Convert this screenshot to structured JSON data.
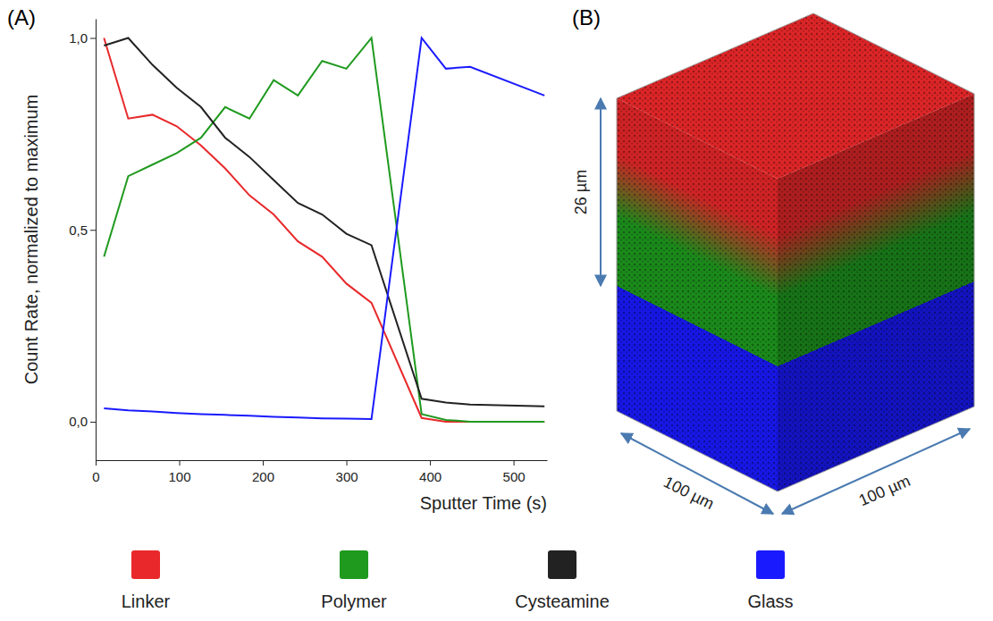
{
  "chart_data": [
    {
      "type": "line",
      "label": "(A)",
      "x_label": "Sputter Time (s)",
      "y_label": "Count Rate, normalized to maximum",
      "x": [
        10,
        39,
        68,
        97,
        126,
        155,
        184,
        213,
        242,
        271,
        300,
        330,
        390,
        419,
        448,
        537
      ],
      "xlim": [
        0,
        540
      ],
      "xticks": [
        0,
        100,
        200,
        300,
        400,
        500
      ],
      "ylim": [
        -0.1,
        1.05
      ],
      "yticks": [
        {
          "value": 0,
          "label": "0,0"
        },
        {
          "value": 0.5,
          "label": "0,5"
        },
        {
          "value": 1,
          "label": "1,0"
        }
      ],
      "grid": false,
      "legend": "bottom",
      "series": [
        {
          "name": "Linker",
          "color": "#e8282a",
          "values": [
            1.0,
            0.79,
            0.8,
            0.77,
            0.72,
            0.66,
            0.59,
            0.54,
            0.47,
            0.43,
            0.36,
            0.31,
            0.01,
            0.0,
            0.0,
            0.0
          ]
        },
        {
          "name": "Polymer",
          "color": "#1f9a1f",
          "values": [
            0.43,
            0.64,
            0.67,
            0.7,
            0.74,
            0.82,
            0.79,
            0.89,
            0.85,
            0.94,
            0.92,
            1.0,
            0.02,
            0.005,
            0.0,
            0.0
          ]
        },
        {
          "name": "Cysteamine",
          "color": "#222222",
          "values": [
            0.98,
            1.0,
            0.93,
            0.87,
            0.82,
            0.74,
            0.69,
            0.63,
            0.57,
            0.54,
            0.49,
            0.46,
            0.06,
            0.05,
            0.045,
            0.04
          ]
        },
        {
          "name": "Glass",
          "color": "#1a1aff",
          "values": [
            0.035,
            0.03,
            0.027,
            0.023,
            0.02,
            0.018,
            0.016,
            0.013,
            0.011,
            0.009,
            0.008,
            0.007,
            1.0,
            0.92,
            0.925,
            0.85
          ]
        }
      ]
    },
    {
      "type": "image",
      "label": "(B)",
      "height_label": "26 µm",
      "width_labels": [
        "100 µm",
        "100 µm"
      ]
    }
  ]
}
